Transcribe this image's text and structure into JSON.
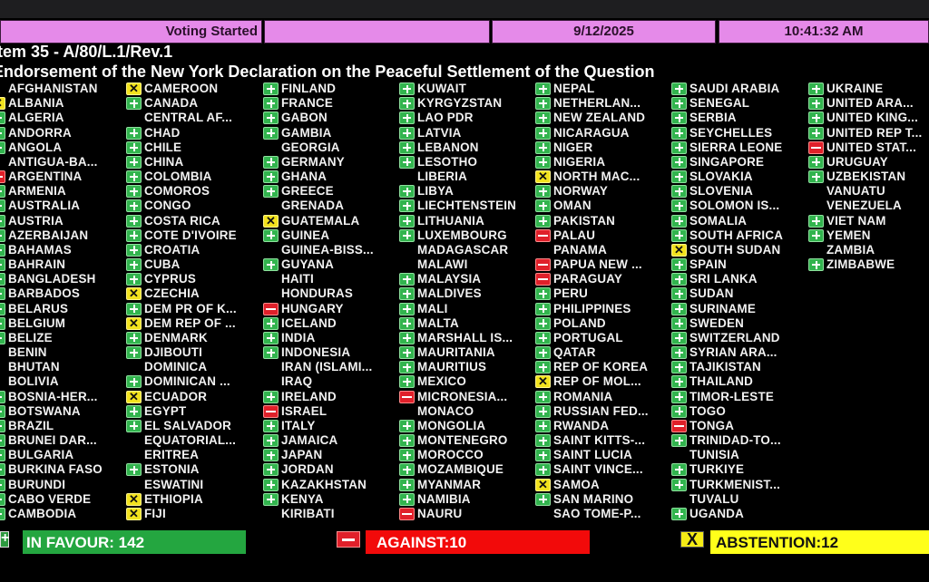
{
  "header": {
    "status": "Voting Started",
    "date": "9/12/2025",
    "time": "10:41:32 AM"
  },
  "item": "Item 35 - A/80/L.1/Rev.1",
  "title": "Endorsement of the New York Declaration on the Peaceful Settlement of the Question",
  "colors": {
    "yes": "#32b44e",
    "no": "#e0202a",
    "abstain": "#f2e21e",
    "header": "#e58ae9"
  },
  "columns": [
    [
      [
        "AFGHANISTAN",
        ""
      ],
      [
        "ALBANIA",
        "abstain"
      ],
      [
        "ALGERIA",
        "yes"
      ],
      [
        "ANDORRA",
        "yes"
      ],
      [
        "ANGOLA",
        "yes"
      ],
      [
        "ANTIGUA-BA...",
        ""
      ],
      [
        "ARGENTINA",
        "no"
      ],
      [
        "ARMENIA",
        "yes"
      ],
      [
        "AUSTRALIA",
        "yes"
      ],
      [
        "AUSTRIA",
        "yes"
      ],
      [
        "AZERBAIJAN",
        "yes"
      ],
      [
        "BAHAMAS",
        "yes"
      ],
      [
        "BAHRAIN",
        "yes"
      ],
      [
        "BANGLADESH",
        "yes"
      ],
      [
        "BARBADOS",
        "yes"
      ],
      [
        "BELARUS",
        "yes"
      ],
      [
        "BELGIUM",
        "yes"
      ],
      [
        "BELIZE",
        "yes"
      ],
      [
        "BENIN",
        ""
      ],
      [
        "BHUTAN",
        ""
      ],
      [
        "BOLIVIA",
        ""
      ],
      [
        "BOSNIA-HER...",
        "yes"
      ],
      [
        "BOTSWANA",
        "yes"
      ],
      [
        "BRAZIL",
        "yes"
      ],
      [
        "BRUNEI DAR...",
        "yes"
      ],
      [
        "BULGARIA",
        "yes"
      ],
      [
        "BURKINA FASO",
        "yes"
      ],
      [
        "BURUNDI",
        "yes"
      ],
      [
        "CABO VERDE",
        "yes"
      ],
      [
        "CAMBODIA",
        "yes"
      ]
    ],
    [
      [
        "CAMEROON",
        "abstain"
      ],
      [
        "CANADA",
        "yes"
      ],
      [
        "CENTRAL AF...",
        ""
      ],
      [
        "CHAD",
        "yes"
      ],
      [
        "CHILE",
        "yes"
      ],
      [
        "CHINA",
        "yes"
      ],
      [
        "COLOMBIA",
        "yes"
      ],
      [
        "COMOROS",
        "yes"
      ],
      [
        "CONGO",
        "yes"
      ],
      [
        "COSTA RICA",
        "yes"
      ],
      [
        "COTE D'IVOIRE",
        "yes"
      ],
      [
        "CROATIA",
        "yes"
      ],
      [
        "CUBA",
        "yes"
      ],
      [
        "CYPRUS",
        "yes"
      ],
      [
        "CZECHIA",
        "abstain"
      ],
      [
        "DEM PR OF K...",
        "yes"
      ],
      [
        "DEM REP OF ...",
        "abstain"
      ],
      [
        "DENMARK",
        "yes"
      ],
      [
        "DJIBOUTI",
        "yes"
      ],
      [
        "DOMINICA",
        ""
      ],
      [
        "DOMINICAN ...",
        "yes"
      ],
      [
        "ECUADOR",
        "abstain"
      ],
      [
        "EGYPT",
        "yes"
      ],
      [
        "EL SALVADOR",
        "yes"
      ],
      [
        "EQUATORIAL...",
        ""
      ],
      [
        "ERITREA",
        ""
      ],
      [
        "ESTONIA",
        "yes"
      ],
      [
        "ESWATINI",
        ""
      ],
      [
        "ETHIOPIA",
        "abstain"
      ],
      [
        "FIJI",
        "abstain"
      ]
    ],
    [
      [
        "FINLAND",
        "yes"
      ],
      [
        "FRANCE",
        "yes"
      ],
      [
        "GABON",
        "yes"
      ],
      [
        "GAMBIA",
        "yes"
      ],
      [
        "GEORGIA",
        ""
      ],
      [
        "GERMANY",
        "yes"
      ],
      [
        "GHANA",
        "yes"
      ],
      [
        "GREECE",
        "yes"
      ],
      [
        "GRENADA",
        ""
      ],
      [
        "GUATEMALA",
        "abstain"
      ],
      [
        "GUINEA",
        "yes"
      ],
      [
        "GUINEA-BISS...",
        ""
      ],
      [
        "GUYANA",
        "yes"
      ],
      [
        "HAITI",
        ""
      ],
      [
        "HONDURAS",
        ""
      ],
      [
        "HUNGARY",
        "no"
      ],
      [
        "ICELAND",
        "yes"
      ],
      [
        "INDIA",
        "yes"
      ],
      [
        "INDONESIA",
        "yes"
      ],
      [
        "IRAN (ISLAMI...",
        ""
      ],
      [
        "IRAQ",
        ""
      ],
      [
        "IRELAND",
        "yes"
      ],
      [
        "ISRAEL",
        "no"
      ],
      [
        "ITALY",
        "yes"
      ],
      [
        "JAMAICA",
        "yes"
      ],
      [
        "JAPAN",
        "yes"
      ],
      [
        "JORDAN",
        "yes"
      ],
      [
        "KAZAKHSTAN",
        "yes"
      ],
      [
        "KENYA",
        "yes"
      ],
      [
        "KIRIBATI",
        ""
      ]
    ],
    [
      [
        "KUWAIT",
        "yes"
      ],
      [
        "KYRGYZSTAN",
        "yes"
      ],
      [
        "LAO PDR",
        "yes"
      ],
      [
        "LATVIA",
        "yes"
      ],
      [
        "LEBANON",
        "yes"
      ],
      [
        "LESOTHO",
        "yes"
      ],
      [
        "LIBERIA",
        ""
      ],
      [
        "LIBYA",
        "yes"
      ],
      [
        "LIECHTENSTEIN",
        "yes"
      ],
      [
        "LITHUANIA",
        "yes"
      ],
      [
        "LUXEMBOURG",
        "yes"
      ],
      [
        "MADAGASCAR",
        ""
      ],
      [
        "MALAWI",
        ""
      ],
      [
        "MALAYSIA",
        "yes"
      ],
      [
        "MALDIVES",
        "yes"
      ],
      [
        "MALI",
        "yes"
      ],
      [
        "MALTA",
        "yes"
      ],
      [
        "MARSHALL IS...",
        "yes"
      ],
      [
        "MAURITANIA",
        "yes"
      ],
      [
        "MAURITIUS",
        "yes"
      ],
      [
        "MEXICO",
        "yes"
      ],
      [
        "MICRONESIA...",
        "no"
      ],
      [
        "MONACO",
        ""
      ],
      [
        "MONGOLIA",
        "yes"
      ],
      [
        "MONTENEGRO",
        "yes"
      ],
      [
        "MOROCCO",
        "yes"
      ],
      [
        "MOZAMBIQUE",
        "yes"
      ],
      [
        "MYANMAR",
        "yes"
      ],
      [
        "NAMIBIA",
        "yes"
      ],
      [
        "NAURU",
        "no"
      ]
    ],
    [
      [
        "NEPAL",
        "yes"
      ],
      [
        "NETHERLAN...",
        "yes"
      ],
      [
        "NEW ZEALAND",
        "yes"
      ],
      [
        "NICARAGUA",
        "yes"
      ],
      [
        "NIGER",
        "yes"
      ],
      [
        "NIGERIA",
        "yes"
      ],
      [
        "NORTH MAC...",
        "abstain"
      ],
      [
        "NORWAY",
        "yes"
      ],
      [
        "OMAN",
        "yes"
      ],
      [
        "PAKISTAN",
        "yes"
      ],
      [
        "PALAU",
        "no"
      ],
      [
        "PANAMA",
        ""
      ],
      [
        "PAPUA NEW ...",
        "no"
      ],
      [
        "PARAGUAY",
        "no"
      ],
      [
        "PERU",
        "yes"
      ],
      [
        "PHILIPPINES",
        "yes"
      ],
      [
        "POLAND",
        "yes"
      ],
      [
        "PORTUGAL",
        "yes"
      ],
      [
        "QATAR",
        "yes"
      ],
      [
        "REP OF KOREA",
        "yes"
      ],
      [
        "REP OF MOL...",
        "abstain"
      ],
      [
        "ROMANIA",
        "yes"
      ],
      [
        "RUSSIAN FED...",
        "yes"
      ],
      [
        "RWANDA",
        "yes"
      ],
      [
        "SAINT KITTS-...",
        "yes"
      ],
      [
        "SAINT LUCIA",
        "yes"
      ],
      [
        "SAINT VINCE...",
        "yes"
      ],
      [
        "SAMOA",
        "abstain"
      ],
      [
        "SAN MARINO",
        "yes"
      ],
      [
        "SAO TOME-P...",
        ""
      ]
    ],
    [
      [
        "SAUDI ARABIA",
        "yes"
      ],
      [
        "SENEGAL",
        "yes"
      ],
      [
        "SERBIA",
        "yes"
      ],
      [
        "SEYCHELLES",
        "yes"
      ],
      [
        "SIERRA LEONE",
        "yes"
      ],
      [
        "SINGAPORE",
        "yes"
      ],
      [
        "SLOVAKIA",
        "yes"
      ],
      [
        "SLOVENIA",
        "yes"
      ],
      [
        "SOLOMON IS...",
        "yes"
      ],
      [
        "SOMALIA",
        "yes"
      ],
      [
        "SOUTH AFRICA",
        "yes"
      ],
      [
        "SOUTH SUDAN",
        "abstain"
      ],
      [
        "SPAIN",
        "yes"
      ],
      [
        "SRI LANKA",
        "yes"
      ],
      [
        "SUDAN",
        "yes"
      ],
      [
        "SURINAME",
        "yes"
      ],
      [
        "SWEDEN",
        "yes"
      ],
      [
        "SWITZERLAND",
        "yes"
      ],
      [
        "SYRIAN ARA...",
        "yes"
      ],
      [
        "TAJIKISTAN",
        "yes"
      ],
      [
        "THAILAND",
        "yes"
      ],
      [
        "TIMOR-LESTE",
        "yes"
      ],
      [
        "TOGO",
        "yes"
      ],
      [
        "TONGA",
        "no"
      ],
      [
        "TRINIDAD-TO...",
        "yes"
      ],
      [
        "TUNISIA",
        ""
      ],
      [
        "TURKIYE",
        "yes"
      ],
      [
        "TURKMENIST...",
        "yes"
      ],
      [
        "TUVALU",
        ""
      ],
      [
        "UGANDA",
        "yes"
      ]
    ],
    [
      [
        "UKRAINE",
        "yes"
      ],
      [
        "UNITED ARA...",
        "yes"
      ],
      [
        "UNITED KING...",
        "yes"
      ],
      [
        "UNITED REP T...",
        "yes"
      ],
      [
        "UNITED STAT...",
        "no"
      ],
      [
        "URUGUAY",
        "yes"
      ],
      [
        "UZBEKISTAN",
        "yes"
      ],
      [
        "VANUATU",
        ""
      ],
      [
        "VENEZUELA",
        ""
      ],
      [
        "VIET NAM",
        "yes"
      ],
      [
        "YEMEN",
        "yes"
      ],
      [
        "ZAMBIA",
        ""
      ],
      [
        "ZIMBABWE",
        "yes"
      ]
    ]
  ],
  "summary": {
    "in_favour": "IN FAVOUR: 142",
    "against": "AGAINST:10",
    "abstention": "ABSTENTION:12",
    "yes_symbol": "+",
    "abstain_symbol": "X"
  }
}
